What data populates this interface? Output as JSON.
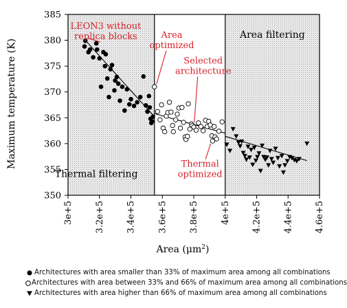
{
  "chart_data": {
    "type": "scatter",
    "xlabel": "Area (μm",
    "xlabel_sup": "2",
    "xlabel_close": ")",
    "ylabel": "Maximum temperature (K)",
    "xlim": [
      300000,
      460000
    ],
    "ylim": [
      350,
      385
    ],
    "xticks": [
      {
        "value": 300000,
        "label": "3e+5"
      },
      {
        "value": 320000,
        "label": "3.2e+5"
      },
      {
        "value": 340000,
        "label": "3.4e+5"
      },
      {
        "value": 360000,
        "label": "3.6e+5"
      },
      {
        "value": 380000,
        "label": "3.8e+5"
      },
      {
        "value": 400000,
        "label": "4e+5"
      },
      {
        "value": 420000,
        "label": "4.2e+5"
      },
      {
        "value": 440000,
        "label": "4.4e+5"
      },
      {
        "value": 460000,
        "label": "4.6e+5"
      }
    ],
    "yticks": [
      350,
      355,
      360,
      365,
      370,
      375,
      380,
      385
    ],
    "regions": [
      {
        "from": 300000,
        "to": 355000,
        "shaded": true,
        "label": "Thermal filtering",
        "label_x": 318000,
        "label_y": 353.5
      },
      {
        "from": 355000,
        "to": 400000,
        "shaded": false,
        "label": "",
        "label_x": 0,
        "label_y": 0
      },
      {
        "from": 400000,
        "to": 460000,
        "shaded": true,
        "label": "Area filtering",
        "label_x": 430000,
        "label_y": 380.5
      }
    ],
    "annotation_color": "#d62027",
    "annotations": [
      {
        "lines": [
          "LEON3 without",
          "replica blocks"
        ],
        "text_x": 324000,
        "text_y": 382.2,
        "point": [
          311000,
          379.9
        ]
      },
      {
        "lines": [
          "Area",
          "optimized"
        ],
        "text_x": 366000,
        "text_y": 380.5,
        "point": [
          355000,
          371
        ]
      },
      {
        "lines": [
          "Selected",
          "architecture"
        ],
        "text_x": 386000,
        "text_y": 375.5,
        "point": [
          379000,
          363.5
        ]
      },
      {
        "lines": [
          "Thermal",
          "optimized"
        ],
        "text_x": 384000,
        "text_y": 355.5,
        "point": [
          392000,
          360.5
        ]
      }
    ],
    "trend_lines": [
      {
        "x": [
          311000,
          355000
        ],
        "y": [
          380.0,
          365.2
        ]
      },
      {
        "x": [
          355000,
          400000
        ],
        "y": [
          365.8,
          362.0
        ]
      },
      {
        "x": [
          400000,
          452000
        ],
        "y": [
          361.4,
          356.7
        ]
      }
    ],
    "series": [
      {
        "name": "Architectures with area smaller than 33% of maximum area among all combinations",
        "marker": "filled-circle",
        "points": [
          [
            311000,
            379.9
          ],
          [
            310500,
            378.8
          ],
          [
            313000,
            377.7
          ],
          [
            314000,
            378.2
          ],
          [
            316000,
            376.7
          ],
          [
            318000,
            379.4
          ],
          [
            318500,
            378.2
          ],
          [
            320000,
            376.5
          ],
          [
            321000,
            371.0
          ],
          [
            322500,
            377.7
          ],
          [
            323500,
            375.0
          ],
          [
            324000,
            377.3
          ],
          [
            325000,
            372.6
          ],
          [
            326000,
            369.0
          ],
          [
            327000,
            374.4
          ],
          [
            328000,
            375.2
          ],
          [
            329500,
            370.3
          ],
          [
            330000,
            372.2
          ],
          [
            331000,
            372.9
          ],
          [
            332000,
            371.6
          ],
          [
            333000,
            368.3
          ],
          [
            334500,
            371.0
          ],
          [
            336000,
            366.4
          ],
          [
            337500,
            370.5
          ],
          [
            339000,
            367.6
          ],
          [
            340000,
            368.6
          ],
          [
            342000,
            367.3
          ],
          [
            344000,
            368.0
          ],
          [
            346000,
            369.0
          ],
          [
            348000,
            373.0
          ],
          [
            349500,
            367.4
          ],
          [
            350500,
            366.2
          ],
          [
            351500,
            369.2
          ],
          [
            352500,
            364.8
          ],
          [
            353000,
            364.0
          ],
          [
            353500,
            364.3
          ],
          [
            354000,
            365.2
          ],
          [
            352000,
            367.0
          ]
        ]
      },
      {
        "name": "Architectures with area between 33% and 66% of maximum area among all combinations",
        "marker": "open-circle",
        "points": [
          [
            355000,
            371.0
          ],
          [
            357000,
            366.2
          ],
          [
            358500,
            364.6
          ],
          [
            359500,
            367.5
          ],
          [
            360500,
            363.0
          ],
          [
            361500,
            362.3
          ],
          [
            362500,
            365.3
          ],
          [
            363500,
            366.0
          ],
          [
            364500,
            368.0
          ],
          [
            365500,
            366.1
          ],
          [
            366500,
            363.5
          ],
          [
            367000,
            362.3
          ],
          [
            368500,
            364.6
          ],
          [
            369500,
            365.7
          ],
          [
            370500,
            366.9
          ],
          [
            371500,
            363.0
          ],
          [
            372500,
            367.0
          ],
          [
            373500,
            364.1
          ],
          [
            374500,
            361.3
          ],
          [
            375000,
            360.8
          ],
          [
            376000,
            361.4
          ],
          [
            376500,
            367.7
          ],
          [
            377500,
            362.8
          ],
          [
            378500,
            363.8
          ],
          [
            379000,
            363.5
          ],
          [
            380000,
            363.2
          ],
          [
            381500,
            362.6
          ],
          [
            383000,
            364.0
          ],
          [
            384500,
            363.3
          ],
          [
            386000,
            362.5
          ],
          [
            387500,
            364.5
          ],
          [
            388500,
            363.3
          ],
          [
            389500,
            364.3
          ],
          [
            390500,
            363.6
          ],
          [
            391500,
            361.5
          ],
          [
            392000,
            360.5
          ],
          [
            393000,
            363.3
          ],
          [
            393500,
            361.3
          ],
          [
            394500,
            360.9
          ],
          [
            396000,
            362.4
          ],
          [
            398000,
            364.2
          ]
        ]
      },
      {
        "name": "Architectures with area higher than 66% of maximum area among all combinations",
        "marker": "filled-triangle",
        "points": [
          [
            401000,
            359.8
          ],
          [
            403000,
            358.6
          ],
          [
            405000,
            362.8
          ],
          [
            407000,
            361.4
          ],
          [
            408500,
            360.2
          ],
          [
            409500,
            359.5
          ],
          [
            410500,
            360.4
          ],
          [
            411500,
            358.2
          ],
          [
            412500,
            357.6
          ],
          [
            413500,
            356.9
          ],
          [
            414500,
            359.4
          ],
          [
            415500,
            357.3
          ],
          [
            416500,
            358.8
          ],
          [
            417500,
            355.9
          ],
          [
            418500,
            359.2
          ],
          [
            419500,
            356.7
          ],
          [
            420500,
            357.4
          ],
          [
            421500,
            358.1
          ],
          [
            422500,
            354.7
          ],
          [
            423500,
            359.6
          ],
          [
            424500,
            357.4
          ],
          [
            425500,
            356.9
          ],
          [
            426500,
            357.3
          ],
          [
            427500,
            355.8
          ],
          [
            428500,
            358.6
          ],
          [
            429500,
            357.0
          ],
          [
            430500,
            356.3
          ],
          [
            432000,
            359.0
          ],
          [
            433500,
            357.2
          ],
          [
            434500,
            355.6
          ],
          [
            436000,
            357.6
          ],
          [
            437000,
            354.4
          ],
          [
            438000,
            355.8
          ],
          [
            439500,
            356.6
          ],
          [
            441000,
            357.4
          ],
          [
            442500,
            357.2
          ],
          [
            444000,
            356.8
          ],
          [
            445500,
            356.6
          ],
          [
            447000,
            357.0
          ],
          [
            452000,
            360.0
          ]
        ]
      }
    ]
  }
}
